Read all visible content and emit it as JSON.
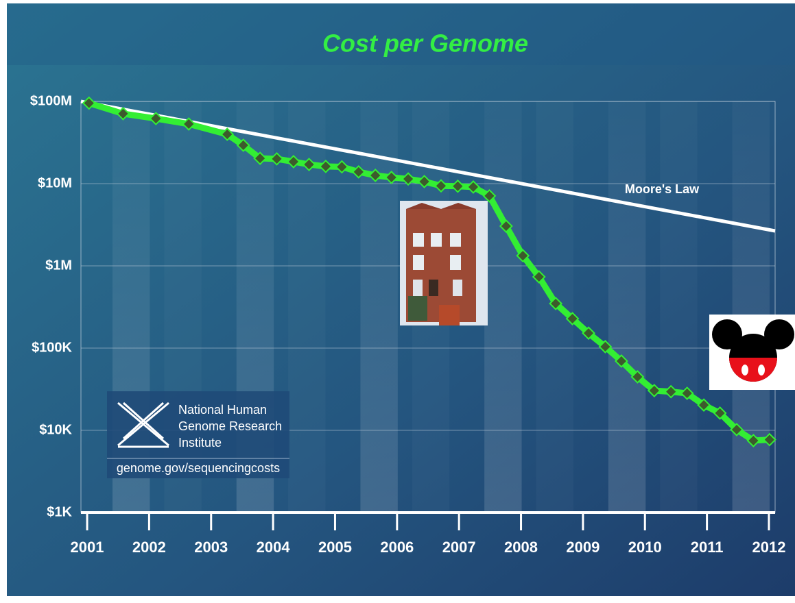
{
  "chart_data": {
    "type": "line",
    "title": "Cost per Genome",
    "log_scale_y": true,
    "grid": true,
    "xlim": [
      2000.9,
      2012.1
    ],
    "xticks": [
      2001,
      2002,
      2003,
      2004,
      2005,
      2006,
      2007,
      2008,
      2009,
      2010,
      2011,
      2012
    ],
    "ylim": [
      1000,
      100000000
    ],
    "yticks": [
      {
        "value": 1000,
        "label": "$1K"
      },
      {
        "value": 10000,
        "label": "$10K"
      },
      {
        "value": 100000,
        "label": "$100K"
      },
      {
        "value": 1000000,
        "label": "$1M"
      },
      {
        "value": 10000000,
        "label": "$10M"
      },
      {
        "value": 100000000,
        "label": "$100M"
      }
    ],
    "series": [
      {
        "color": "#33ee33",
        "marker_color": "#3d5a2c",
        "x": [
          2001.03,
          2001.58,
          2002.11,
          2002.64,
          2003.26,
          2003.52,
          2003.79,
          2004.06,
          2004.33,
          2004.58,
          2004.85,
          2005.11,
          2005.38,
          2005.65,
          2005.91,
          2006.18,
          2006.44,
          2006.71,
          2006.98,
          2007.23,
          2007.49,
          2007.76,
          2008.03,
          2008.29,
          2008.56,
          2008.83,
          2009.09,
          2009.36,
          2009.62,
          2009.88,
          2010.15,
          2010.42,
          2010.68,
          2010.95,
          2011.21,
          2011.48,
          2011.75,
          2012.01
        ],
        "values": [
          95300000,
          70900000,
          61900000,
          53100000,
          39800000,
          29300000,
          20300000,
          20000000,
          18500000,
          17100000,
          16200000,
          16000000,
          13900000,
          12600000,
          11900000,
          11400000,
          10600000,
          9400000,
          9300000,
          9100000,
          7100000,
          3040000,
          1330000,
          736000,
          348000,
          228000,
          152000,
          104000,
          69500,
          44700,
          30400,
          29500,
          28200,
          20300,
          16200,
          10200,
          7500,
          7700
        ]
      },
      {
        "name": "Moore's Law",
        "color": "#ffffff",
        "x": [
          2000.9,
          2012.1
        ],
        "values": [
          100000000,
          2660000
        ]
      }
    ]
  },
  "logo": {
    "lines": [
      "National Human",
      "Genome Research",
      "Institute"
    ],
    "url": "genome.gov/sequencingcosts"
  }
}
